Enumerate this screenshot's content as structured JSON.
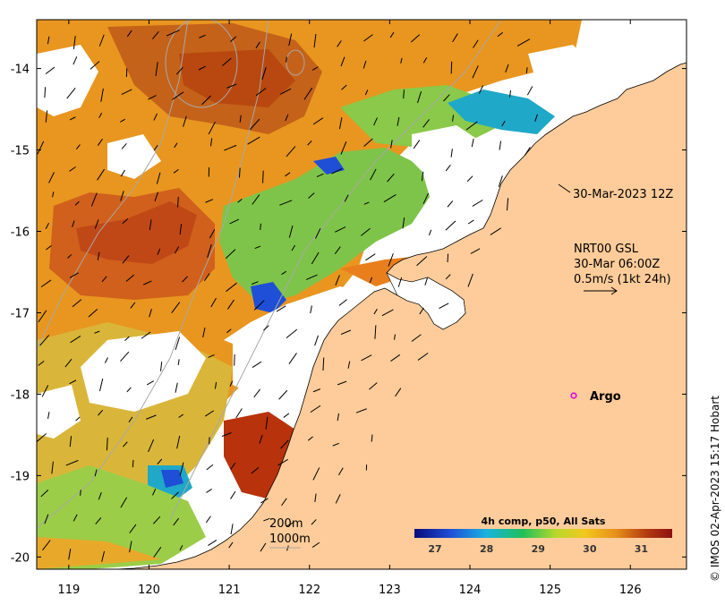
{
  "map": {
    "x_ticks": [
      "119",
      "120",
      "121",
      "122",
      "123",
      "124",
      "125",
      "126"
    ],
    "y_ticks": [
      "-14",
      "-15",
      "-16",
      "-17",
      "-18",
      "-19",
      "-20"
    ],
    "x_range": [
      118.6,
      126.7
    ],
    "y_range": [
      -20.15,
      -13.4
    ]
  },
  "annotations": {
    "timestamp": "30-Mar-2023 12Z",
    "current_product": "NRT00 GSL",
    "current_time": "30-Mar 06:00Z",
    "current_scale": "0.5m/s (1kt 24h)",
    "argo_label": "Argo",
    "isobath_200": "200m",
    "isobath_1000": "1000m"
  },
  "colorbar": {
    "title": "4h comp, p50, All Sats",
    "ticks": [
      "27",
      "28",
      "29",
      "30",
      "31"
    ],
    "range": [
      26.6,
      31.6
    ],
    "colors": [
      "#0a0a7a",
      "#1f4fd6",
      "#19b3e0",
      "#1fbf5a",
      "#b8d92a",
      "#f2c81e",
      "#e8901b",
      "#b43a10",
      "#8b1010"
    ]
  },
  "credit": "© IMOS 02-Apr-2023 15:17 Hobart",
  "colors": {
    "land": "#fdcc9a",
    "no_data": "#ffffff",
    "argo_marker": "#e000e0"
  }
}
